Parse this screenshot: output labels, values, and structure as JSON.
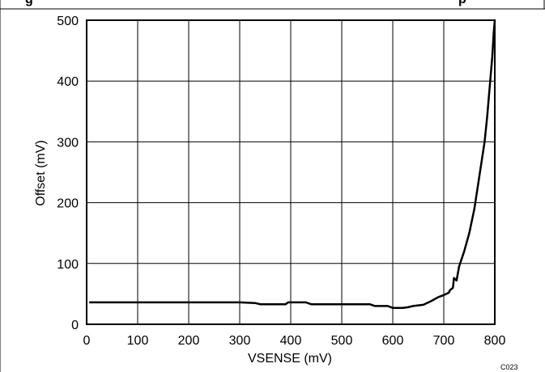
{
  "caption_fragment": "g",
  "caption_end_fragment": "p",
  "figure_code": "C023",
  "chart_data": {
    "type": "line",
    "title": "",
    "xlabel": "VSENSE (mV)",
    "ylabel": "Offset (mV)",
    "xlim": [
      0,
      800
    ],
    "ylim": [
      0,
      500
    ],
    "x_ticks": [
      0,
      100,
      200,
      300,
      400,
      500,
      600,
      700,
      800
    ],
    "y_ticks": [
      0,
      100,
      200,
      300,
      400,
      500
    ],
    "grid": true,
    "legend": "none",
    "line_color": "#000000",
    "series": [
      {
        "x": [
          5,
          100,
          200,
          300,
          330,
          340,
          390,
          395,
          430,
          440,
          500,
          555,
          565,
          590,
          600,
          620,
          630,
          640,
          660,
          675,
          690,
          700,
          705,
          710,
          712,
          718,
          720,
          725,
          730,
          740,
          750,
          760,
          770,
          780,
          785,
          790,
          795,
          798,
          800
        ],
        "y": [
          36,
          36,
          36,
          36,
          35,
          33,
          33,
          36,
          36,
          33,
          33,
          33,
          30,
          30,
          27,
          27,
          28,
          30,
          32,
          38,
          45,
          48,
          50,
          52,
          56,
          60,
          76,
          72,
          95,
          120,
          150,
          190,
          245,
          300,
          340,
          390,
          440,
          480,
          500
        ]
      }
    ]
  }
}
